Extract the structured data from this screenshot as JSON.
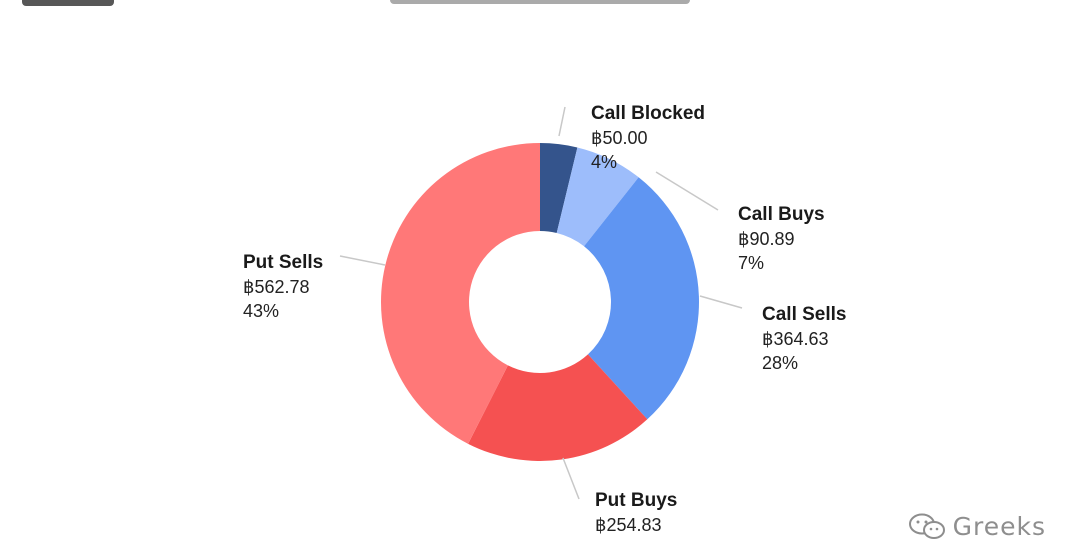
{
  "chart_data": {
    "type": "pie",
    "donut": true,
    "currency_symbol": "฿",
    "slices": [
      {
        "name": "Call Blocked",
        "value_label": "฿50.00",
        "value": 50.0,
        "percent_label": "4%",
        "color": "#34548c"
      },
      {
        "name": "Call Buys",
        "value_label": "฿90.89",
        "value": 90.89,
        "percent_label": "7%",
        "color": "#9dbdfb"
      },
      {
        "name": "Call Sells",
        "value_label": "฿364.63",
        "value": 364.63,
        "percent_label": "28%",
        "color": "#5f95f2"
      },
      {
        "name": "Put Buys",
        "value_label": "฿254.83",
        "value": 254.83,
        "percent_label": "",
        "color": "#f55151"
      },
      {
        "name": "Put Sells",
        "value_label": "฿562.78",
        "value": 562.78,
        "percent_label": "43%",
        "color": "#ff7878"
      }
    ]
  },
  "watermark": {
    "text": "Greeks",
    "icon": "wechat-icon"
  }
}
